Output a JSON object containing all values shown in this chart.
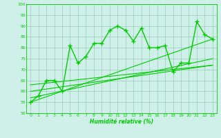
{
  "x": [
    0,
    1,
    2,
    3,
    4,
    5,
    6,
    7,
    8,
    9,
    10,
    11,
    12,
    13,
    14,
    15,
    16,
    17,
    18,
    19,
    20,
    21,
    22,
    23
  ],
  "y_main": [
    55,
    58,
    65,
    65,
    60,
    81,
    73,
    76,
    82,
    82,
    88,
    90,
    88,
    83,
    89,
    80,
    80,
    81,
    69,
    73,
    73,
    92,
    86,
    84
  ],
  "trend_lines": [
    {
      "x0": 0,
      "y0": 55,
      "x1": 23,
      "y1": 84
    },
    {
      "x0": 0,
      "y0": 57,
      "x1": 23,
      "y1": 75
    },
    {
      "x0": 0,
      "y0": 60,
      "x1": 23,
      "y1": 72
    },
    {
      "x0": 0,
      "y0": 63,
      "x1": 23,
      "y1": 72
    }
  ],
  "ylim": [
    50,
    100
  ],
  "xlim": [
    -0.5,
    23.5
  ],
  "yticks": [
    50,
    55,
    60,
    65,
    70,
    75,
    80,
    85,
    90,
    95,
    100
  ],
  "xticks": [
    0,
    1,
    2,
    3,
    4,
    5,
    6,
    7,
    8,
    9,
    10,
    11,
    12,
    13,
    14,
    15,
    16,
    17,
    18,
    19,
    20,
    21,
    22,
    23
  ],
  "xlabel": "Humidité relative (%)",
  "line_color": "#00cc00",
  "bg_color": "#cff0e8",
  "grid_color": "#99ccbb",
  "marker": "+",
  "markersize": 4,
  "linewidth": 1.0
}
